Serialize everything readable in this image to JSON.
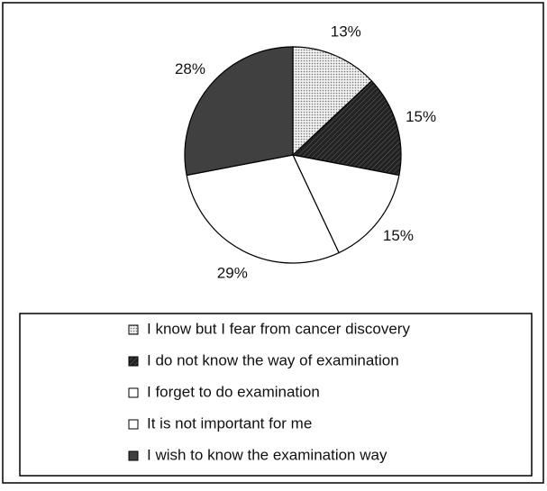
{
  "chart_data": {
    "type": "pie",
    "categories": [
      "I know but I fear from cancer discovery",
      "I do not know the way of examination",
      "I forget to do examination",
      "It is not important for me",
      "I wish to know the examination way"
    ],
    "values": [
      13,
      15,
      15,
      29,
      28
    ],
    "value_labels": [
      "13%",
      "15%",
      "15%",
      "29%",
      "28%"
    ],
    "colors": [
      "#d8d8d8",
      "#262626",
      "#ffffff",
      "#ffffff",
      "#404040"
    ],
    "legend": "bottom"
  }
}
